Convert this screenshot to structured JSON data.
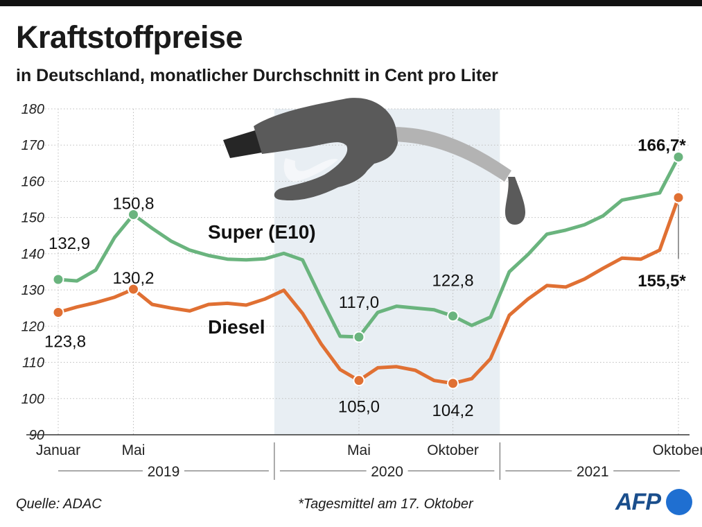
{
  "title": "Kraftstoffpreise",
  "subtitle": "in Deutschland, monatlicher Durchschnitt in Cent pro Liter",
  "source": "Quelle: ADAC",
  "footnote": "*Tagesmittel am 17. Oktober",
  "logo": "AFP",
  "colors": {
    "super": "#6ab47e",
    "diesel": "#e07033",
    "highlight": "#e8eef3",
    "nozzle": "#5a5a5a",
    "hose": "#b3b3b3",
    "grid": "#bdbdbd"
  },
  "chart_data": {
    "type": "line",
    "title": "Kraftstoffpreise",
    "ylabel": "Cent pro Liter",
    "ylim": [
      90,
      180
    ],
    "yticks": [
      90,
      100,
      110,
      120,
      130,
      140,
      150,
      160,
      170,
      180
    ],
    "x_start": "2019-01",
    "x_end": "2021-10",
    "x_tick_labels": [
      {
        "month_index": 0,
        "label": "Januar"
      },
      {
        "month_index": 4,
        "label": "Mai"
      },
      {
        "month_index": 16,
        "label": "Mai"
      },
      {
        "month_index": 21,
        "label": "Oktober"
      },
      {
        "month_index": 33,
        "label": "Oktober"
      }
    ],
    "years": [
      {
        "label": "2019",
        "from": 0,
        "to": 11
      },
      {
        "label": "2020",
        "from": 12,
        "to": 23
      },
      {
        "label": "2021",
        "from": 24,
        "to": 33
      }
    ],
    "highlight_period": {
      "from": 11.5,
      "to": 23.5,
      "note": "2020"
    },
    "series": [
      {
        "name": "Super (E10)",
        "label": "Super (E10)",
        "values": [
          132.9,
          132.5,
          135.5,
          144.5,
          150.8,
          147.0,
          143.5,
          141.0,
          139.5,
          138.5,
          138.3,
          138.6,
          140.1,
          138.3,
          127.5,
          117.2,
          117.0,
          123.8,
          125.5,
          125.0,
          124.5,
          122.8,
          120.2,
          122.5,
          135.0,
          139.8,
          145.4,
          146.5,
          148.0,
          150.5,
          154.8,
          155.8,
          156.8,
          166.7
        ],
        "annotations": [
          {
            "index": 0,
            "text": "132,9"
          },
          {
            "index": 4,
            "text": "150,8"
          },
          {
            "index": 16,
            "text": "117,0"
          },
          {
            "index": 21,
            "text": "122,8"
          },
          {
            "index": 33,
            "text": "166,7*"
          }
        ]
      },
      {
        "name": "Diesel",
        "label": "Diesel",
        "values": [
          123.8,
          125.3,
          126.5,
          128.0,
          130.2,
          126.0,
          125.0,
          124.2,
          126.0,
          126.3,
          125.8,
          127.5,
          129.9,
          123.5,
          115.0,
          108.0,
          105.0,
          108.5,
          108.8,
          107.8,
          105.0,
          104.2,
          105.5,
          111.0,
          123.0,
          127.5,
          131.2,
          130.8,
          133.0,
          136.0,
          138.8,
          138.5,
          141.0,
          155.5
        ],
        "annotations": [
          {
            "index": 0,
            "text": "123,8"
          },
          {
            "index": 4,
            "text": "130,2"
          },
          {
            "index": 16,
            "text": "105,0"
          },
          {
            "index": 21,
            "text": "104,2"
          },
          {
            "index": 33,
            "text": "155,5*"
          }
        ]
      }
    ]
  }
}
